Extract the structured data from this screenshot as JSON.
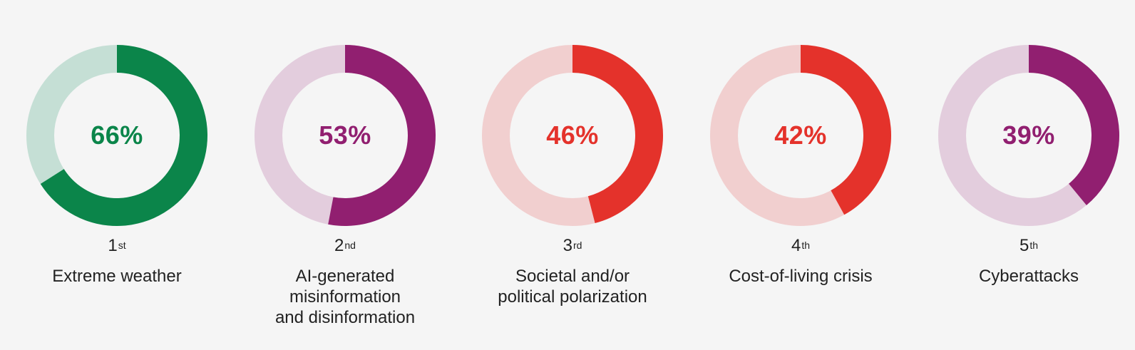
{
  "chart_data": {
    "type": "pie",
    "items": [
      {
        "rank": "1",
        "rank_suffix": "st",
        "label": "Extreme weather",
        "value": 66,
        "value_text": "66%",
        "color": "#0b854a",
        "track_color": "#c5dfd5"
      },
      {
        "rank": "2",
        "rank_suffix": "nd",
        "label": "AI-generated\nmisinformation\nand disinformation",
        "value": 53,
        "value_text": "53%",
        "color": "#911f70",
        "track_color": "#e3cddd"
      },
      {
        "rank": "3",
        "rank_suffix": "rd",
        "label": "Societal and/or\npolitical polarization",
        "value": 46,
        "value_text": "46%",
        "color": "#e4322b",
        "track_color": "#f1cfcf"
      },
      {
        "rank": "4",
        "rank_suffix": "th",
        "label": "Cost-of-living crisis",
        "value": 42,
        "value_text": "42%",
        "color": "#e4322b",
        "track_color": "#f1cfcf"
      },
      {
        "rank": "5",
        "rank_suffix": "th",
        "label": "Cyberattacks",
        "value": 39,
        "value_text": "39%",
        "color": "#911f70",
        "track_color": "#e3cddd"
      }
    ]
  }
}
